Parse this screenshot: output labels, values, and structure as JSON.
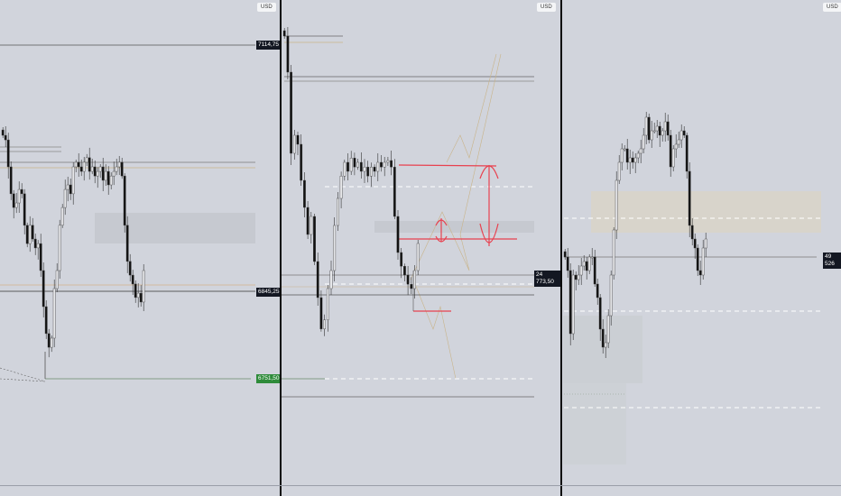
{
  "panels": [
    {
      "currency": "USD",
      "price_labels": [
        {
          "text": "7114,75",
          "style": "dark"
        },
        {
          "text": "6845,25",
          "style": "dark"
        },
        {
          "text": "6751,50",
          "style": "green"
        }
      ],
      "closes": [
        7016,
        7011,
        6981.5,
        6952,
        6937,
        6942,
        6956.75,
        6952,
        6917.5,
        6897.5,
        6917.5,
        6902.5,
        6892.75,
        6897.5,
        6868,
        6828.5,
        6799,
        6784,
        6794,
        6848.25,
        6868,
        6917.5,
        6937,
        6956.75,
        6961.75,
        6952,
        6981.5,
        6986.5,
        6981.5,
        6976.5,
        6986.5,
        6991.5,
        6976.5,
        6981.5,
        6971.5,
        6976.5,
        6981.5,
        6966.75,
        6976.5,
        6961.75,
        6971.5,
        6976.5,
        6981.5,
        6986.5,
        6971.5,
        6917.5,
        6878,
        6863,
        6853.25,
        6838.5,
        6843.25,
        6833.5,
        6868
      ]
    },
    {
      "currency": "USD",
      "price_labels": [
        {
          "text": "24 773,50",
          "style": "dark"
        }
      ],
      "closes": [
        25436,
        25336,
        25111,
        25161,
        25136,
        25036,
        24961,
        24886,
        24936,
        24811,
        24711,
        24624,
        24649,
        24736,
        24786,
        24911,
        24986,
        25048,
        25086,
        25061,
        25098,
        25073,
        25086,
        25061,
        25073,
        25048,
        25073,
        25061,
        25086,
        25073,
        25086,
        25091,
        25073,
        24936,
        24836,
        24798,
        24773.5,
        24748,
        24736,
        24786,
        24861
      ]
    },
    {
      "currency": "USD",
      "price_labels": [
        {
          "text": "49 526",
          "style": "dark"
        }
      ],
      "closes": [
        49526,
        49376,
        48676,
        49326,
        49276,
        49326,
        49426,
        49476,
        49376,
        49526,
        49526,
        49226,
        49076,
        48726,
        48526,
        48576,
        48876,
        49326,
        49826,
        50376,
        50576,
        50726,
        50726,
        50576,
        50626,
        50576,
        50626,
        50676,
        50726,
        50876,
        51076,
        50826,
        50926,
        50926,
        50976,
        50876,
        50926,
        51026,
        50876,
        50526,
        50726,
        50776,
        50826,
        50926,
        50876,
        50476,
        49876,
        49726,
        49626,
        49376,
        49326,
        49626,
        49726
      ]
    }
  ],
  "colors": {
    "background": "#d1d4dc",
    "bearish": "#111111",
    "bullish": "#e6e7ea",
    "annotation": "#e8414f",
    "projection": "#c9b48a",
    "support_green": "#2e8b3a",
    "zone_gray": "#c6c9d0",
    "zone_tan": "#d8d4cb"
  }
}
